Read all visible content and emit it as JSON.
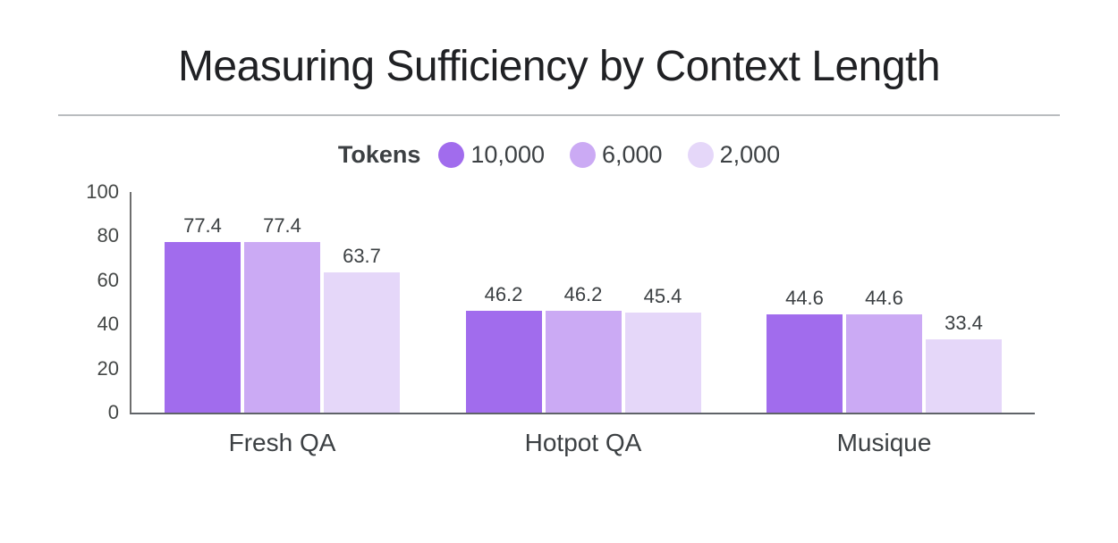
{
  "title": "Measuring Sufficiency by Context Length",
  "legend": {
    "title": "Tokens"
  },
  "chart_data": {
    "type": "bar",
    "title": "Measuring Sufficiency by Context Length",
    "legend_title": "Tokens",
    "legend_position": "top",
    "grid": false,
    "categories": [
      "Fresh QA",
      "Hotpot QA",
      "Musique"
    ],
    "series": [
      {
        "name": "10,000",
        "color": "#a16ced",
        "values": [
          77.4,
          46.2,
          44.6
        ]
      },
      {
        "name": "6,000",
        "color": "#cbaaf4",
        "values": [
          77.4,
          46.2,
          44.6
        ]
      },
      {
        "name": "2,000",
        "color": "#e5d7f9",
        "values": [
          63.7,
          45.4,
          33.4
        ]
      }
    ],
    "ylim": [
      0,
      100
    ],
    "yticks": [
      0,
      20,
      40,
      60,
      80,
      100
    ],
    "value_labels": true
  },
  "colors": {
    "background": "#ffffff",
    "title_text": "#202124",
    "divider": "#b9bcbf",
    "axis_line": "#5f6368",
    "tick_text": "#444746",
    "label_text": "#3c4043",
    "series_dark": "#a16ced",
    "series_medium": "#cbaaf4",
    "series_light": "#e5d7f9"
  }
}
